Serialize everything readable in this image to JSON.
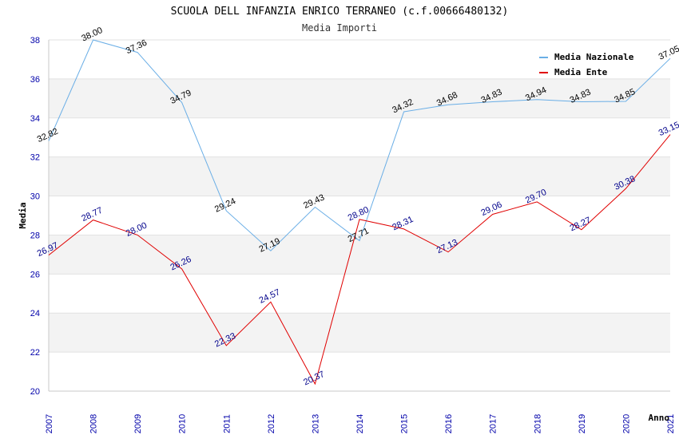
{
  "chart_data": {
    "type": "line",
    "title": "SCUOLA DELL INFANZIA ENRICO TERRANEO (c.f.00666480132)",
    "subtitle": "Media Importi",
    "xlabel": "Anno",
    "ylabel": "Media",
    "ylim": [
      20,
      38
    ],
    "yticks": [
      "20",
      "22",
      "24",
      "26",
      "28",
      "30",
      "32",
      "34",
      "36",
      "38"
    ],
    "x": [
      "2007",
      "2008",
      "2009",
      "2010",
      "2011",
      "2012",
      "2013",
      "2014",
      "2015",
      "2016",
      "2017",
      "2018",
      "2019",
      "2020",
      "2021"
    ],
    "grid": "horizontal bands",
    "legend": "top-right",
    "series": [
      {
        "name": "Media Nazionale",
        "color": "#6aaee6",
        "label_color": "#000000",
        "values": [
          32.82,
          38.0,
          37.36,
          34.79,
          29.24,
          27.19,
          29.43,
          27.71,
          34.32,
          34.68,
          34.83,
          34.94,
          34.83,
          34.85,
          37.05
        ],
        "labels": [
          "32.82",
          "38.00",
          "37.36",
          "34.79",
          "29.24",
          "27.19",
          "29.43",
          "27.71",
          "34.32",
          "34.68",
          "34.83",
          "34.94",
          "34.83",
          "34.85",
          "37.05"
        ]
      },
      {
        "name": "Media Ente",
        "color": "#e00000",
        "label_color": "#00008b",
        "values": [
          26.97,
          28.77,
          28.0,
          26.26,
          22.33,
          24.57,
          20.37,
          28.8,
          28.31,
          27.13,
          29.06,
          29.7,
          28.27,
          30.38,
          33.15
        ],
        "labels": [
          "26.97",
          "28.77",
          "28.00",
          "26.26",
          "22.33",
          "24.57",
          "20.37",
          "28.80",
          "28.31",
          "27.13",
          "29.06",
          "29.70",
          "28.27",
          "30.38",
          "33.15"
        ]
      }
    ]
  }
}
